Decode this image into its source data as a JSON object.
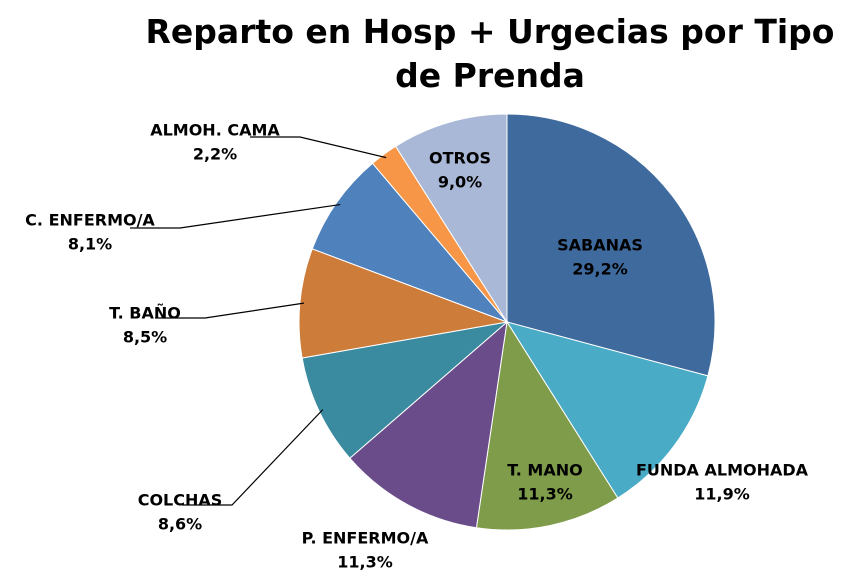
{
  "chart_data": {
    "type": "pie",
    "title": "Reparto en Hosp + Urgecias por Tipo de Prenda",
    "categories": [
      "SABANAS",
      "FUNDA ALMOHADA",
      "T. MANO",
      "P. ENFERMO/A",
      "COLCHAS",
      "T. BAÑO",
      "C. ENFERMO/A",
      "ALMOH. CAMA",
      "OTROS"
    ],
    "values": [
      29.2,
      11.9,
      11.3,
      11.3,
      8.6,
      8.5,
      8.1,
      2.2,
      9.0
    ],
    "value_labels": [
      "29,2%",
      "11,9%",
      "11,3%",
      "11,3%",
      "8,6%",
      "8,5%",
      "8,1%",
      "2,2%",
      "9,0%"
    ],
    "colors": [
      "#3f6a9e",
      "#4aabc6",
      "#7f9c4a",
      "#6a4c8a",
      "#3a8aa0",
      "#cd7c3a",
      "#4f81bd",
      "#f79646",
      "#a9b8d6"
    ]
  }
}
